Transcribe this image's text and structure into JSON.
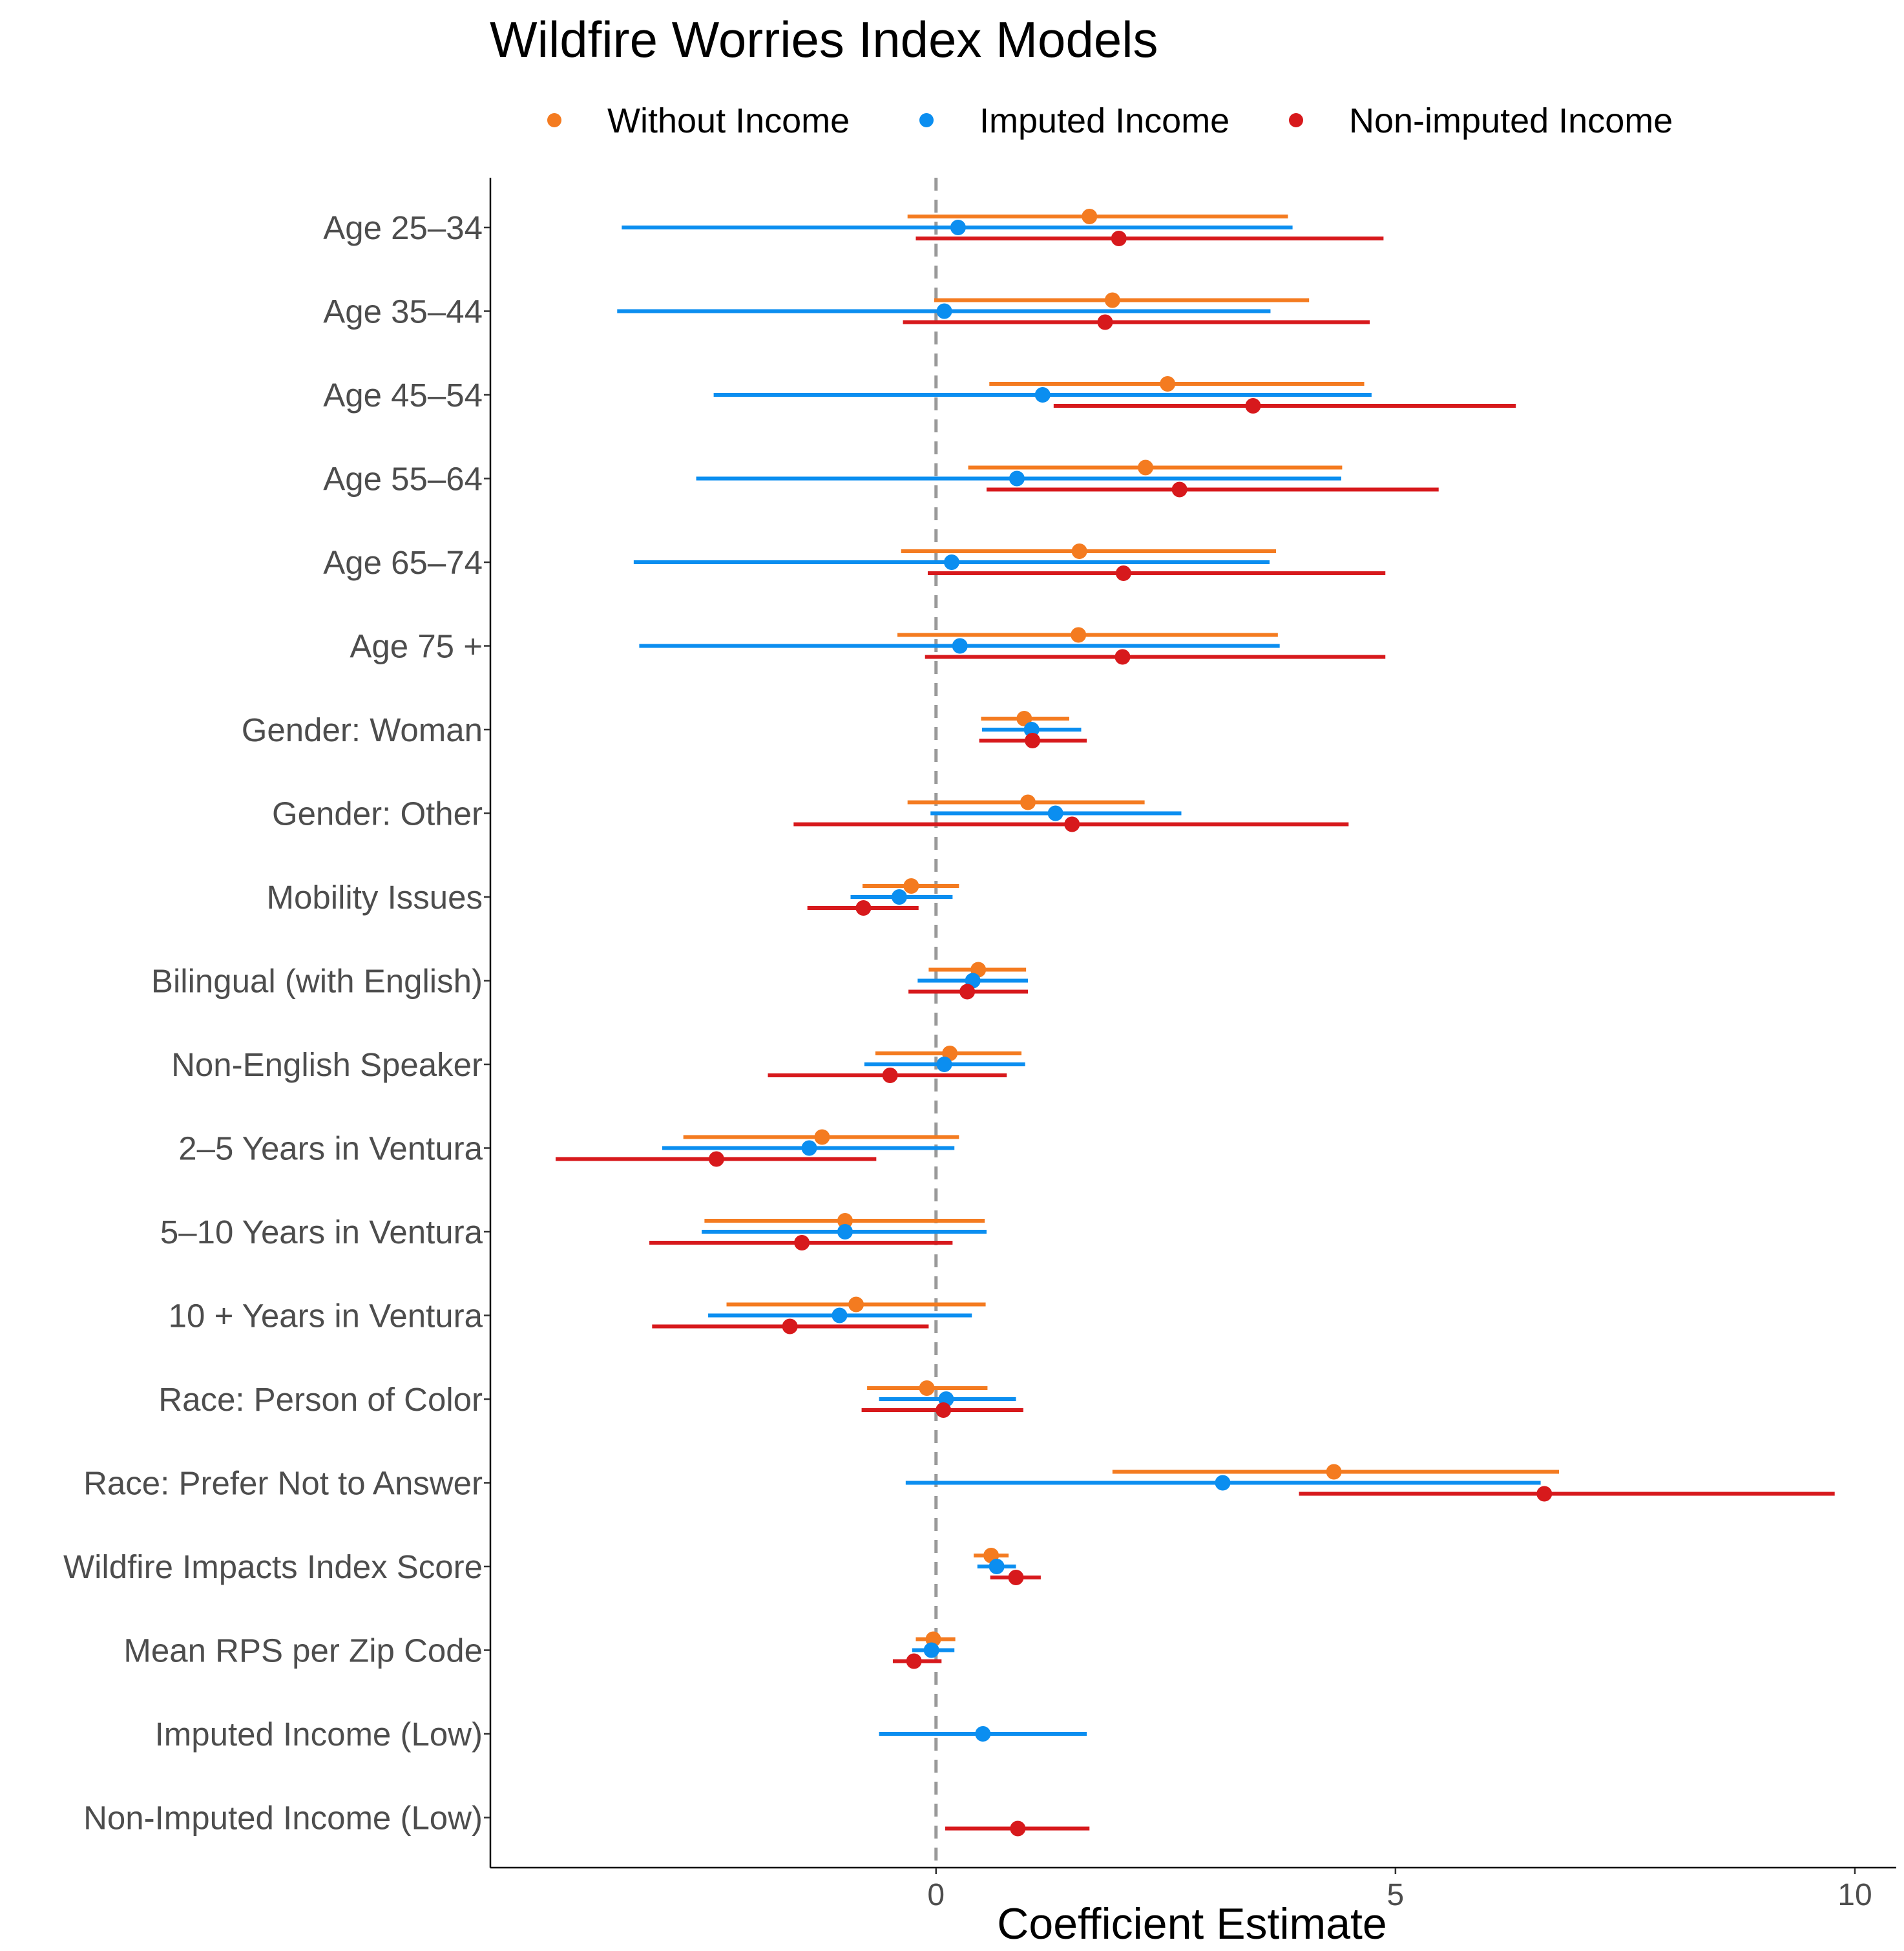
{
  "chart_data": {
    "type": "forest",
    "title": "Wildfire Worries Index Models",
    "xlabel": "Coefficient Estimate",
    "ylabel": "",
    "xlim": [
      -4.85,
      10.45
    ],
    "x_ticks": [
      0,
      5,
      10
    ],
    "x_tick_labels": [
      "0",
      "5",
      "10"
    ],
    "reference_line": 0,
    "legend_position": "top",
    "grid": false,
    "categories": [
      "Age 25–34",
      "Age 35–44",
      "Age 45–54",
      "Age 55–64",
      "Age 65–74",
      "Age 75 +",
      "Gender: Woman",
      "Gender: Other",
      "Mobility Issues",
      "Bilingual (with English)",
      "Non-English Speaker",
      "2–5 Years in Ventura",
      "5–10 Years in Ventura",
      "10 + Years in Ventura",
      "Race: Person of Color",
      "Race: Prefer Not to Answer",
      "Wildfire Impacts Index Score",
      "Mean RPS per Zip Code",
      "Imputed Income (Low)",
      "Non-Imputed Income (Low)"
    ],
    "series": [
      {
        "name": "Without Income",
        "color": "#f47b20",
        "points": [
          {
            "category": "Age 25–34",
            "estimate": 1.67,
            "low": -0.31,
            "high": 3.83
          },
          {
            "category": "Age 35–44",
            "estimate": 1.92,
            "low": -0.02,
            "high": 4.06
          },
          {
            "category": "Age 45–54",
            "estimate": 2.52,
            "low": 0.58,
            "high": 4.66
          },
          {
            "category": "Age 55–64",
            "estimate": 2.28,
            "low": 0.35,
            "high": 4.42
          },
          {
            "category": "Age 65–74",
            "estimate": 1.56,
            "low": -0.38,
            "high": 3.7
          },
          {
            "category": "Age 75 +",
            "estimate": 1.55,
            "low": -0.42,
            "high": 3.72
          },
          {
            "category": "Gender: Woman",
            "estimate": 0.96,
            "low": 0.49,
            "high": 1.45
          },
          {
            "category": "Gender: Other",
            "estimate": 1.0,
            "low": -0.31,
            "high": 2.27
          },
          {
            "category": "Mobility Issues",
            "estimate": -0.27,
            "low": -0.8,
            "high": 0.25
          },
          {
            "category": "Bilingual (with English)",
            "estimate": 0.46,
            "low": -0.08,
            "high": 0.98
          },
          {
            "category": "Non-English Speaker",
            "estimate": 0.15,
            "low": -0.66,
            "high": 0.93
          },
          {
            "category": "2–5 Years in Ventura",
            "estimate": -1.24,
            "low": -2.75,
            "high": 0.25
          },
          {
            "category": "5–10 Years in Ventura",
            "estimate": -0.99,
            "low": -2.52,
            "high": 0.53
          },
          {
            "category": "10 + Years in Ventura",
            "estimate": -0.87,
            "low": -2.28,
            "high": 0.54
          },
          {
            "category": "Race: Person of Color",
            "estimate": -0.1,
            "low": -0.75,
            "high": 0.56
          },
          {
            "category": "Race: Prefer Not to Answer",
            "estimate": 4.33,
            "low": 1.92,
            "high": 6.78
          },
          {
            "category": "Wildfire Impacts Index Score",
            "estimate": 0.6,
            "low": 0.41,
            "high": 0.79
          },
          {
            "category": "Mean RPS per Zip Code",
            "estimate": -0.03,
            "low": -0.22,
            "high": 0.21
          }
        ]
      },
      {
        "name": "Imputed Income",
        "color": "#0b8ef0",
        "points": [
          {
            "category": "Age 25–34",
            "estimate": 0.24,
            "low": -3.42,
            "high": 3.88
          },
          {
            "category": "Age 35–44",
            "estimate": 0.09,
            "low": -3.47,
            "high": 3.64
          },
          {
            "category": "Age 45–54",
            "estimate": 1.16,
            "low": -2.42,
            "high": 4.74
          },
          {
            "category": "Age 55–64",
            "estimate": 0.88,
            "low": -2.61,
            "high": 4.41
          },
          {
            "category": "Age 65–74",
            "estimate": 0.17,
            "low": -3.29,
            "high": 3.63
          },
          {
            "category": "Age 75 +",
            "estimate": 0.26,
            "low": -3.23,
            "high": 3.74
          },
          {
            "category": "Gender: Woman",
            "estimate": 1.04,
            "low": 0.5,
            "high": 1.58
          },
          {
            "category": "Gender: Other",
            "estimate": 1.3,
            "low": -0.06,
            "high": 2.67
          },
          {
            "category": "Mobility Issues",
            "estimate": -0.4,
            "low": -0.93,
            "high": 0.18
          },
          {
            "category": "Bilingual (with English)",
            "estimate": 0.4,
            "low": -0.2,
            "high": 1.0
          },
          {
            "category": "Non-English Speaker",
            "estimate": 0.09,
            "low": -0.78,
            "high": 0.97
          },
          {
            "category": "2–5 Years in Ventura",
            "estimate": -1.38,
            "low": -2.98,
            "high": 0.2
          },
          {
            "category": "5–10 Years in Ventura",
            "estimate": -0.99,
            "low": -2.55,
            "high": 0.55
          },
          {
            "category": "10 + Years in Ventura",
            "estimate": -1.05,
            "low": -2.48,
            "high": 0.39
          },
          {
            "category": "Race: Person of Color",
            "estimate": 0.11,
            "low": -0.62,
            "high": 0.87
          },
          {
            "category": "Race: Prefer Not to Answer",
            "estimate": 3.12,
            "low": -0.33,
            "high": 6.58
          },
          {
            "category": "Wildfire Impacts Index Score",
            "estimate": 0.66,
            "low": 0.45,
            "high": 0.87
          },
          {
            "category": "Mean RPS per Zip Code",
            "estimate": -0.05,
            "low": -0.26,
            "high": 0.2
          },
          {
            "category": "Imputed Income (Low)",
            "estimate": 0.51,
            "low": -0.62,
            "high": 1.64
          }
        ]
      },
      {
        "name": "Non-imputed Income",
        "color": "#d7191c",
        "points": [
          {
            "category": "Age 25–34",
            "estimate": 1.99,
            "low": -0.22,
            "high": 4.87
          },
          {
            "category": "Age 35–44",
            "estimate": 1.84,
            "low": -0.36,
            "high": 4.72
          },
          {
            "category": "Age 45–54",
            "estimate": 3.45,
            "low": 1.28,
            "high": 6.31
          },
          {
            "category": "Age 55–64",
            "estimate": 2.65,
            "low": 0.55,
            "high": 5.47
          },
          {
            "category": "Age 65–74",
            "estimate": 2.04,
            "low": -0.09,
            "high": 4.89
          },
          {
            "category": "Age 75 +",
            "estimate": 2.03,
            "low": -0.12,
            "high": 4.89
          },
          {
            "category": "Gender: Woman",
            "estimate": 1.05,
            "low": 0.47,
            "high": 1.64
          },
          {
            "category": "Gender: Other",
            "estimate": 1.48,
            "low": -1.55,
            "high": 4.49
          },
          {
            "category": "Mobility Issues",
            "estimate": -0.79,
            "low": -1.4,
            "high": -0.19
          },
          {
            "category": "Bilingual (with English)",
            "estimate": 0.34,
            "low": -0.3,
            "high": 1.0
          },
          {
            "category": "Non-English Speaker",
            "estimate": -0.5,
            "low": -1.83,
            "high": 0.77
          },
          {
            "category": "2–5 Years in Ventura",
            "estimate": -2.39,
            "low": -4.14,
            "high": -0.65
          },
          {
            "category": "5–10 Years in Ventura",
            "estimate": -1.46,
            "low": -3.12,
            "high": 0.18
          },
          {
            "category": "10 + Years in Ventura",
            "estimate": -1.59,
            "low": -3.09,
            "high": -0.08
          },
          {
            "category": "Race: Person of Color",
            "estimate": 0.08,
            "low": -0.81,
            "high": 0.95
          },
          {
            "category": "Race: Prefer Not to Answer",
            "estimate": 6.62,
            "low": 3.95,
            "high": 9.78
          },
          {
            "category": "Wildfire Impacts Index Score",
            "estimate": 0.87,
            "low": 0.59,
            "high": 1.14
          },
          {
            "category": "Mean RPS per Zip Code",
            "estimate": -0.24,
            "low": -0.47,
            "high": 0.06
          },
          {
            "category": "Non-Imputed Income (Low)",
            "estimate": 0.89,
            "low": 0.1,
            "high": 1.67
          }
        ]
      }
    ]
  }
}
